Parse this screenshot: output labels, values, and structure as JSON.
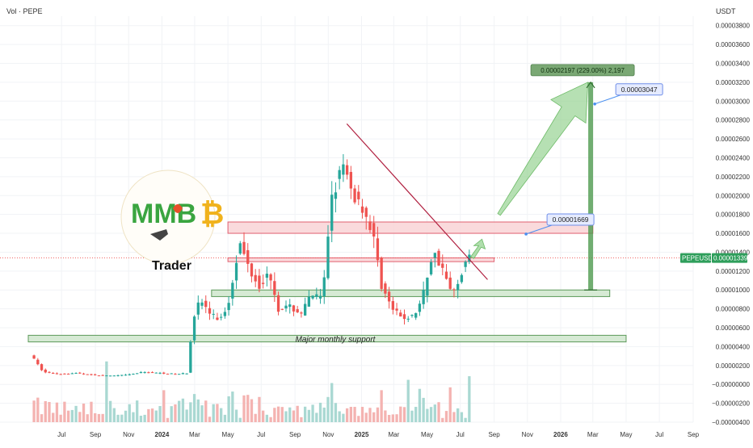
{
  "header": {
    "title": "Vol · PEPE",
    "currency": "USDT"
  },
  "price_scale": {
    "labels": [
      "0.00003800",
      "0.00003600",
      "0.00003400",
      "0.00003200",
      "0.00003000",
      "0.00002800",
      "0.00002600",
      "0.00002400",
      "0.00002200",
      "0.00002000",
      "0.00001800",
      "0.00001600",
      "0.00001400",
      "0.00001200",
      "0.00001000",
      "0.00000800",
      "0.00000600",
      "0.00000400",
      "0.00000200",
      "−0.00000000",
      "−0.00000200",
      "−0.00000400"
    ],
    "values": [
      3.8e-05,
      3.6e-05,
      3.4e-05,
      3.2e-05,
      3e-05,
      2.8e-05,
      2.6e-05,
      2.4e-05,
      2.2e-05,
      2e-05,
      1.8e-05,
      1.6e-05,
      1.4e-05,
      1.2e-05,
      1e-05,
      8e-06,
      6e-06,
      4e-06,
      2e-06,
      0,
      -2e-06,
      -4e-06
    ]
  },
  "time_axis": {
    "labels": [
      "Jul",
      "Sep",
      "Nov",
      "2024",
      "Mar",
      "May",
      "Jul",
      "Sep",
      "Nov",
      "2025",
      "Mar",
      "May",
      "Jul",
      "Sep",
      "Nov",
      "2026",
      "Mar",
      "May",
      "Jul",
      "Sep"
    ],
    "dates": [
      "2023-07",
      "2023-09",
      "2023-11",
      "2024-01",
      "2024-03",
      "2024-05",
      "2024-07",
      "2024-09",
      "2024-11",
      "2025-01",
      "2025-03",
      "2025-05",
      "2025-07",
      "2025-09",
      "2025-11",
      "2026-01",
      "2026-03",
      "2026-05",
      "2026-07",
      "2026-09"
    ]
  },
  "ticker_badge": {
    "symbol": "PEPEUSDT",
    "price": "0.00001339",
    "value": 1.339e-05
  },
  "annotations": {
    "support_label": "Major monthly support",
    "level_1669": "0.00001669",
    "level_3047": "0.00003047",
    "measure_label": "0.00002197 (229.00%) 2,197"
  },
  "logo": {
    "letters": "MMB",
    "sub": "Trader"
  },
  "colors": {
    "up": "#26a69a",
    "down": "#ef5350",
    "vol_up": "#a9d8d2",
    "vol_down": "#f4b3b1",
    "resistance_fill": "#f9d3d6",
    "resistance_stroke": "#e06070",
    "support_fill": "#cfe6cc",
    "support_stroke": "#5c9a5a",
    "trendline": "#b02040",
    "arrow": "#8fd08a",
    "badge_green": "#2e9e5b"
  },
  "chart_data": {
    "type": "candlestick",
    "symbol": "PEPEUSDT",
    "interval": "weekly",
    "price_range": [
      -4e-06,
      3.9e-05
    ],
    "date_range": [
      "2023-05",
      "2026-09"
    ],
    "price_path": [
      [
        "2023-05-08",
        3.2e-06
      ],
      [
        "2023-06-01",
        1.3e-06
      ],
      [
        "2023-07-01",
        1.1e-06
      ],
      [
        "2023-08-01",
        1.2e-06
      ],
      [
        "2023-09-01",
        1e-06
      ],
      [
        "2023-10-01",
        9e-07
      ],
      [
        "2023-11-01",
        1e-06
      ],
      [
        "2023-12-01",
        1.3e-06
      ],
      [
        "2024-01-01",
        1.2e-06
      ],
      [
        "2024-02-01",
        1.1e-06
      ],
      [
        "2024-02-20",
        1.2e-06
      ],
      [
        "2024-03-01",
        7e-06
      ],
      [
        "2024-03-15",
        9e-06
      ],
      [
        "2024-04-01",
        7.5e-06
      ],
      [
        "2024-04-20",
        6.8e-06
      ],
      [
        "2024-05-05",
        8.5e-06
      ],
      [
        "2024-05-25",
        1.5e-05
      ],
      [
        "2024-06-15",
        1.2e-05
      ],
      [
        "2024-07-01",
        1.05e-05
      ],
      [
        "2024-07-20",
        1.18e-05
      ],
      [
        "2024-08-05",
        8e-06
      ],
      [
        "2024-08-25",
        8.2e-06
      ],
      [
        "2024-09-15",
        7.5e-06
      ],
      [
        "2024-10-05",
        9.5e-06
      ],
      [
        "2024-10-25",
        9e-06
      ],
      [
        "2024-11-10",
        2e-05
      ],
      [
        "2024-12-01",
        2.3e-05
      ],
      [
        "2024-12-20",
        2e-05
      ],
      [
        "2025-01-05",
        1.9e-05
      ],
      [
        "2025-01-25",
        1.6e-05
      ],
      [
        "2025-02-10",
        1.05e-05
      ],
      [
        "2025-03-01",
        8e-06
      ],
      [
        "2025-03-20",
        7e-06
      ],
      [
        "2025-04-10",
        7.2e-06
      ],
      [
        "2025-04-25",
        9e-06
      ],
      [
        "2025-05-15",
        1.4e-05
      ],
      [
        "2025-06-01",
        1.25e-05
      ],
      [
        "2025-06-15",
        1e-05
      ],
      [
        "2025-06-25",
        9.8e-06
      ],
      [
        "2025-07-10",
        1.25e-05
      ],
      [
        "2025-07-18",
        1.34e-05
      ]
    ],
    "horizontal_zones": [
      {
        "type": "resistance",
        "from": "2024-05",
        "to": "2026-03",
        "low": 1.6e-05,
        "high": 1.72e-05
      },
      {
        "type": "resistance",
        "from": "2024-05",
        "to": "2025-09",
        "low": 1.3e-05,
        "high": 1.34e-05
      },
      {
        "type": "support",
        "from": "2024-04",
        "to": "2026-04",
        "low": 9.3e-06,
        "high": 1e-05
      },
      {
        "type": "support",
        "from": "2023-05",
        "to": "2026-05",
        "low": 4.5e-06,
        "high": 5.2e-06,
        "label": "Major monthly support"
      }
    ],
    "trendline": {
      "from": [
        "2024-12-05",
        2.76e-05
      ],
      "to": [
        "2025-08-20",
        1.11e-05
      ]
    },
    "projection": {
      "from": [
        "2025-09-10",
        1.8e-05
      ],
      "to": [
        "2026-02-20",
        3.2e-05
      ]
    },
    "measure": {
      "date": "2026-02-25",
      "from": 1e-05,
      "to": 3.2e-05,
      "change": 2.197e-05,
      "percent": 229.0,
      "ticks": 2197
    },
    "price_labels": [
      {
        "date": "2025-12-10",
        "value": 1.669e-05
      },
      {
        "date": "2026-04-15",
        "value": 3.047e-05
      }
    ],
    "current_price": 1.339e-05
  }
}
